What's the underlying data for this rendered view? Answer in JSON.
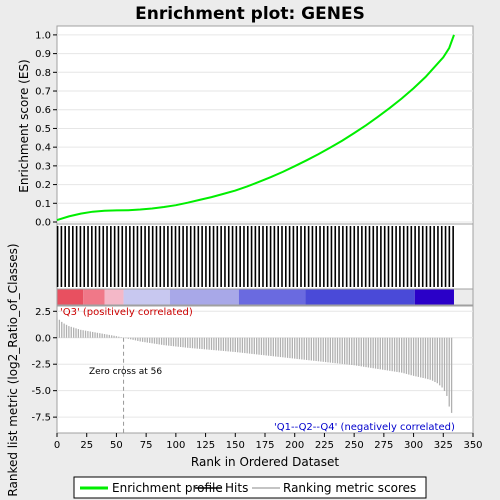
{
  "chart_data": {
    "type": "line",
    "title": "Enrichment plot: GENES",
    "top_panel": {
      "ylabel": "Enrichment score (ES)",
      "ylim": [
        0.0,
        1.0
      ],
      "yticks": [
        "0.0",
        "0.1",
        "0.2",
        "0.3",
        "0.4",
        "0.5",
        "0.6",
        "0.7",
        "0.8",
        "0.9",
        "1.0"
      ],
      "series": [
        {
          "name": "Enrichment profile",
          "color": "#00ee00",
          "x": [
            0,
            10,
            20,
            30,
            40,
            50,
            60,
            70,
            80,
            90,
            100,
            110,
            120,
            130,
            140,
            150,
            160,
            170,
            180,
            190,
            200,
            210,
            220,
            230,
            240,
            250,
            260,
            270,
            280,
            290,
            300,
            310,
            320,
            325,
            330,
            334
          ],
          "y": [
            0.01,
            0.03,
            0.045,
            0.055,
            0.06,
            0.062,
            0.063,
            0.067,
            0.072,
            0.08,
            0.09,
            0.103,
            0.118,
            0.133,
            0.15,
            0.168,
            0.19,
            0.215,
            0.24,
            0.268,
            0.298,
            0.33,
            0.363,
            0.398,
            0.435,
            0.475,
            0.517,
            0.562,
            0.61,
            0.66,
            0.715,
            0.775,
            0.845,
            0.88,
            0.93,
            1.0
          ]
        }
      ]
    },
    "hits": {
      "name": "Hits",
      "color": "#000000",
      "count": 334
    },
    "rank_bar": {
      "segments": [
        {
          "start": 0,
          "end": 22,
          "color": "#e85060"
        },
        {
          "start": 22,
          "end": 40,
          "color": "#f07888"
        },
        {
          "start": 40,
          "end": 56,
          "color": "#f4b8c8"
        },
        {
          "start": 56,
          "end": 95,
          "color": "#c8c8f0"
        },
        {
          "start": 95,
          "end": 153,
          "color": "#a8a8e8"
        },
        {
          "start": 153,
          "end": 209,
          "color": "#6a6ae0"
        },
        {
          "start": 209,
          "end": 301,
          "color": "#4a4ad8"
        },
        {
          "start": 301,
          "end": 334,
          "color": "#2a00c8"
        }
      ]
    },
    "bottom_panel": {
      "ylabel": "Ranked list metric (log2_Ratio_of_Classes)",
      "xlabel": "Rank in Ordered Dataset",
      "ylim": [
        -9,
        3
      ],
      "yticks": [
        "2.5",
        "0.0",
        "-2.5",
        "-5.0",
        "-7.5"
      ],
      "xlim": [
        0,
        350
      ],
      "xticks": [
        "0",
        "25",
        "50",
        "75",
        "100",
        "125",
        "150",
        "175",
        "200",
        "225",
        "250",
        "275",
        "300",
        "325",
        "350"
      ],
      "series": [
        {
          "name": "Ranking metric scores",
          "color": "#b0b0b0",
          "x": [
            0,
            5,
            10,
            20,
            30,
            40,
            50,
            56,
            70,
            90,
            110,
            130,
            150,
            170,
            190,
            210,
            230,
            250,
            270,
            290,
            300,
            310,
            315,
            320,
            325,
            328,
            330,
            332,
            334
          ],
          "y": [
            1.9,
            1.4,
            1.1,
            0.75,
            0.55,
            0.35,
            0.15,
            0.0,
            -0.35,
            -0.7,
            -0.95,
            -1.15,
            -1.35,
            -1.6,
            -1.85,
            -2.1,
            -2.35,
            -2.6,
            -2.95,
            -3.3,
            -3.6,
            -3.85,
            -4.0,
            -4.3,
            -4.8,
            -5.5,
            -6.5,
            -7.1,
            -8.8
          ]
        }
      ],
      "zero_cross": 56
    },
    "annotations": {
      "positive": "'Q3' (positively correlated)",
      "negative": "'Q1--Q2--Q4' (negatively correlated)",
      "zero_cross": "Zero cross at 56"
    },
    "legend": {
      "placement": "bottom",
      "items": [
        "Enrichment profile",
        "Hits",
        "Ranking metric scores"
      ]
    }
  }
}
